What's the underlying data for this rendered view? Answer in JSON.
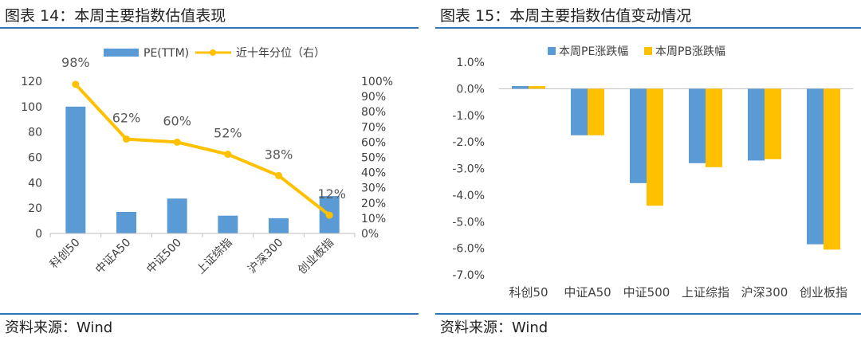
{
  "left": {
    "title": "图表 14：本周主要指数估值表现",
    "source": "资料来源：Wind",
    "colors": {
      "bar": "#5b9bd5",
      "line": "#ffc000"
    }
  },
  "right": {
    "title": "图表 15：本周主要指数估值变动情况",
    "source": "资料来源：Wind",
    "colors": {
      "pe": "#5b9bd5",
      "pb": "#ffc000"
    }
  },
  "chart_data": [
    {
      "type": "bar",
      "subtype": "bar+line dual axis",
      "categories": [
        "科创50",
        "中证A50",
        "中证500",
        "上证综指",
        "沪深300",
        "创业板指"
      ],
      "series": [
        {
          "name": "PE(TTM)",
          "type": "bar",
          "axis": "left",
          "values": [
            100,
            17,
            27.5,
            14,
            12,
            29.5
          ]
        },
        {
          "name": "近十年分位（右）",
          "type": "line",
          "axis": "right",
          "values": [
            0.98,
            0.62,
            0.6,
            0.52,
            0.38,
            0.12
          ],
          "labels": [
            "98%",
            "62%",
            "60%",
            "52%",
            "38%",
            "12%"
          ]
        }
      ],
      "ylim": [
        0,
        120
      ],
      "yticks": [
        "0",
        "20",
        "40",
        "60",
        "80",
        "100",
        "120"
      ],
      "y2lim": [
        0,
        1.0
      ],
      "y2ticks": [
        "0%",
        "10%",
        "20%",
        "30%",
        "40%",
        "50%",
        "60%",
        "70%",
        "80%",
        "90%",
        "100%"
      ],
      "legend": "top",
      "grid": false
    },
    {
      "type": "bar",
      "categories": [
        "科创50",
        "中证A50",
        "中证500",
        "上证综指",
        "沪深300",
        "创业板指"
      ],
      "series": [
        {
          "name": "本周PE涨跌幅",
          "values": [
            0.1,
            -1.75,
            -3.55,
            -2.8,
            -2.7,
            -5.85
          ]
        },
        {
          "name": "本周PB涨跌幅",
          "values": [
            0.1,
            -1.75,
            -4.4,
            -2.95,
            -2.65,
            -6.05
          ]
        }
      ],
      "ylim": [
        -7.0,
        1.0
      ],
      "yticks": [
        "-7.0%",
        "-6.0%",
        "-5.0%",
        "-4.0%",
        "-3.0%",
        "-2.0%",
        "-1.0%",
        "0.0%",
        "1.0%"
      ],
      "legend": "top",
      "grid": false
    }
  ]
}
